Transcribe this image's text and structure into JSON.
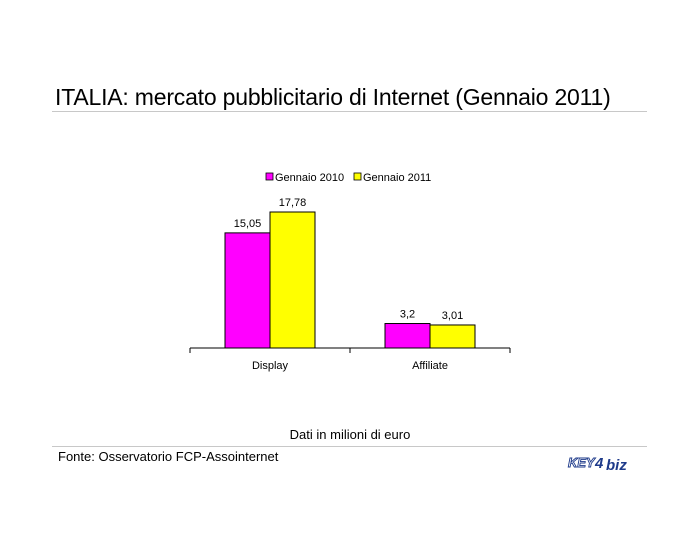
{
  "title": "ITALIA: mercato pubblicitario di Internet (Gennaio 2011)",
  "units_note": "Dati in milioni di euro",
  "source": "Fonte: Osservatorio FCP-Assointernet",
  "logo_text": "KEY4biz",
  "colors": {
    "series_2010": "#ff00ff",
    "series_2011": "#ffff00",
    "bar_outline": "#000000",
    "logo": "#1e3a8a"
  },
  "chart_data": {
    "type": "bar",
    "title": "",
    "xlabel": "",
    "ylabel": "",
    "categories": [
      "Display",
      "Affiliate"
    ],
    "series": [
      {
        "name": "Gennaio 2010",
        "values": [
          15.05,
          3.2
        ],
        "labels": [
          "15,05",
          "3,2"
        ],
        "color": "#ff00ff"
      },
      {
        "name": "Gennaio 2011",
        "values": [
          17.78,
          3.01
        ],
        "labels": [
          "17,78",
          "3,01"
        ],
        "color": "#ffff00"
      }
    ],
    "ylim": [
      0,
      20
    ],
    "grid": false,
    "legend": "top-center"
  }
}
